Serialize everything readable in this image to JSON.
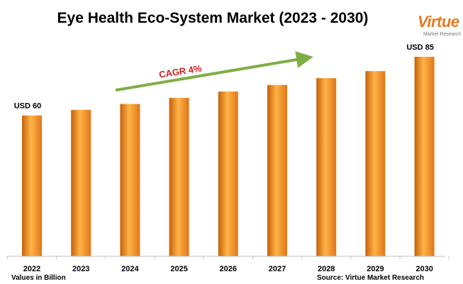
{
  "logo": {
    "text": "Virtue",
    "subtext": "Market Research"
  },
  "footer": {
    "note": "Values in Billion",
    "source": "Source: Virtue Market Research"
  },
  "chart_data": {
    "type": "bar",
    "title": "Eye Health Eco-System Market (2023 - 2030)",
    "categories": [
      "2022",
      "2023",
      "2024",
      "2025",
      "2026",
      "2027",
      "2028",
      "2029",
      "2030"
    ],
    "values": [
      60,
      62.4,
      64.9,
      67.5,
      70.2,
      73,
      75.9,
      78.9,
      85
    ],
    "data_labels": [
      {
        "index": 0,
        "text": "USD 60"
      },
      {
        "index": 8,
        "text": "USD 85"
      }
    ],
    "annotation": "CAGR 4%",
    "ylim": [
      0,
      85
    ],
    "grid": false,
    "colors": {
      "bar_light": "#ffb347",
      "bar_mid": "#f28a1c",
      "bar_dark": "#c7600a",
      "arrow": "#7fae45",
      "annotation": "#d02020"
    }
  }
}
